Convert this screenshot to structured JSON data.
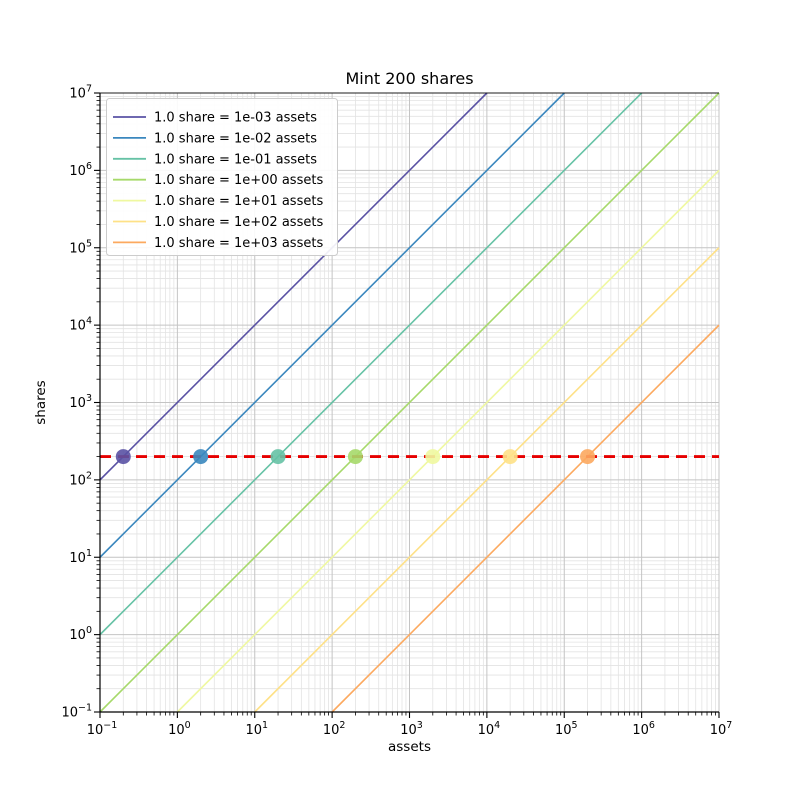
{
  "chart_data": {
    "type": "line",
    "title": "Mint 200 shares",
    "xlabel": "assets",
    "ylabel": "shares",
    "xscale": "log",
    "yscale": "log",
    "xlim": [
      0.1,
      10000000
    ],
    "ylim": [
      0.1,
      10000000
    ],
    "tick_exponents": [
      -1,
      0,
      1,
      2,
      3,
      4,
      5,
      6,
      7
    ],
    "grid": true,
    "legend_position": "upper left",
    "mint_shares": 200,
    "series": [
      {
        "label": "1.0 share = 1e-03 assets",
        "assets_per_share": 0.001,
        "color": "#5a52a4",
        "marker_assets": 0.2,
        "marker_shares": 200
      },
      {
        "label": "1.0 share = 1e-02 assets",
        "assets_per_share": 0.01,
        "color": "#3a87be",
        "marker_assets": 2,
        "marker_shares": 200
      },
      {
        "label": "1.0 share = 1e-01 assets",
        "assets_per_share": 0.1,
        "color": "#66c2a5",
        "marker_assets": 20,
        "marker_shares": 200
      },
      {
        "label": "1.0 share = 1e+00 assets",
        "assets_per_share": 1,
        "color": "#a6d96a",
        "marker_assets": 200,
        "marker_shares": 200
      },
      {
        "label": "1.0 share = 1e+01 assets",
        "assets_per_share": 10,
        "color": "#eff8a0",
        "marker_assets": 2000,
        "marker_shares": 200
      },
      {
        "label": "1.0 share = 1e+02 assets",
        "assets_per_share": 100,
        "color": "#fee187",
        "marker_assets": 20000,
        "marker_shares": 200
      },
      {
        "label": "1.0 share = 1e+03 assets",
        "assets_per_share": 1000,
        "color": "#fca95f",
        "marker_assets": 200000,
        "marker_shares": 200
      }
    ],
    "reference_line": {
      "shares": 200,
      "color": "#e60000",
      "style": "dashed"
    }
  },
  "colors": {
    "background": "#ffffff",
    "grid_major": "#c4c4c4",
    "grid_minor": "#e3e3e3",
    "axis": "#000000",
    "legend_border": "#cccccc",
    "legend_background": "#ffffff"
  }
}
